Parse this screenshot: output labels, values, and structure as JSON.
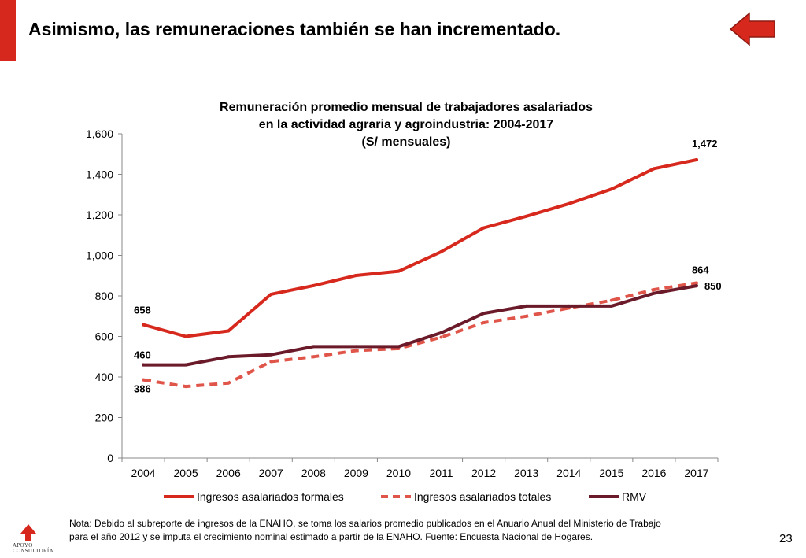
{
  "header": {
    "title": "Asimismo, las remuneraciones también se han incrementado.",
    "back_icon": "left-arrow-icon",
    "accent_color": "#d7281d"
  },
  "chart_data": {
    "type": "line",
    "title_lines": [
      "Remuneración promedio mensual de trabajadores asalariados",
      "en la actividad agraria y agroindustria: 2004-2017",
      "(S/ mensuales)"
    ],
    "categories": [
      "2004",
      "2005",
      "2006",
      "2007",
      "2008",
      "2009",
      "2010",
      "2011",
      "2012",
      "2013",
      "2014",
      "2015",
      "2016",
      "2017"
    ],
    "ylim": [
      0,
      1600
    ],
    "yticks": [
      0,
      200,
      400,
      600,
      800,
      1000,
      1200,
      1400,
      1600
    ],
    "ytick_labels": [
      "0",
      "200",
      "400",
      "600",
      "800",
      "1,000",
      "1,200",
      "1,400",
      "1,600"
    ],
    "grid": false,
    "legend_position": "bottom",
    "series": [
      {
        "name": "Ingresos asalariados formales",
        "color": "#d7281d",
        "dashed": false,
        "values": [
          658,
          600,
          627,
          808,
          851,
          901,
          922,
          1018,
          1136,
          1193,
          1255,
          1327,
          1428,
          1472
        ],
        "first_label": "658",
        "last_label": "1,472"
      },
      {
        "name": "Ingresos asalariados totales",
        "color": "#e0554a",
        "dashed": true,
        "values": [
          386,
          353,
          370,
          476,
          500,
          530,
          540,
          596,
          668,
          700,
          740,
          778,
          831,
          864
        ],
        "first_label": "386",
        "last_label": "864"
      },
      {
        "name": "RMV",
        "color": "#6b1a2a",
        "dashed": false,
        "values": [
          460,
          460,
          500,
          510,
          550,
          550,
          550,
          618,
          714,
          750,
          750,
          750,
          813,
          850
        ],
        "first_label": "460",
        "last_label": "850"
      }
    ]
  },
  "footer": {
    "note_line1": "Nota: Debido al subreporte de ingresos de la ENAHO, se toma los salarios promedio publicados en el Anuario Anual del Ministerio de Trabajo",
    "note_line2": "para el año 2012 y se imputa el crecimiento nominal estimado a partir de la ENAHO. Fuente: Encuesta Nacional de Hogares.",
    "page_number": "23",
    "logo_line1": "APOYO",
    "logo_line2": "CONSULTORÍA"
  }
}
